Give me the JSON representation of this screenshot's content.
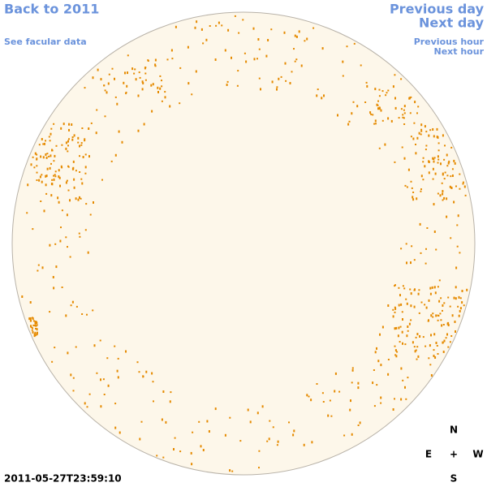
{
  "links": {
    "back": "Back to 2011",
    "facular": "See facular data",
    "previous_day": "Previous day",
    "next_day": "Next day",
    "previous_hour": "Previous hour",
    "next_hour": "Next hour"
  },
  "timestamp": "2011-05-27T23:59:10",
  "compass": {
    "north": "N",
    "east": "E",
    "center": "+",
    "west": "W",
    "south": "S"
  }
}
